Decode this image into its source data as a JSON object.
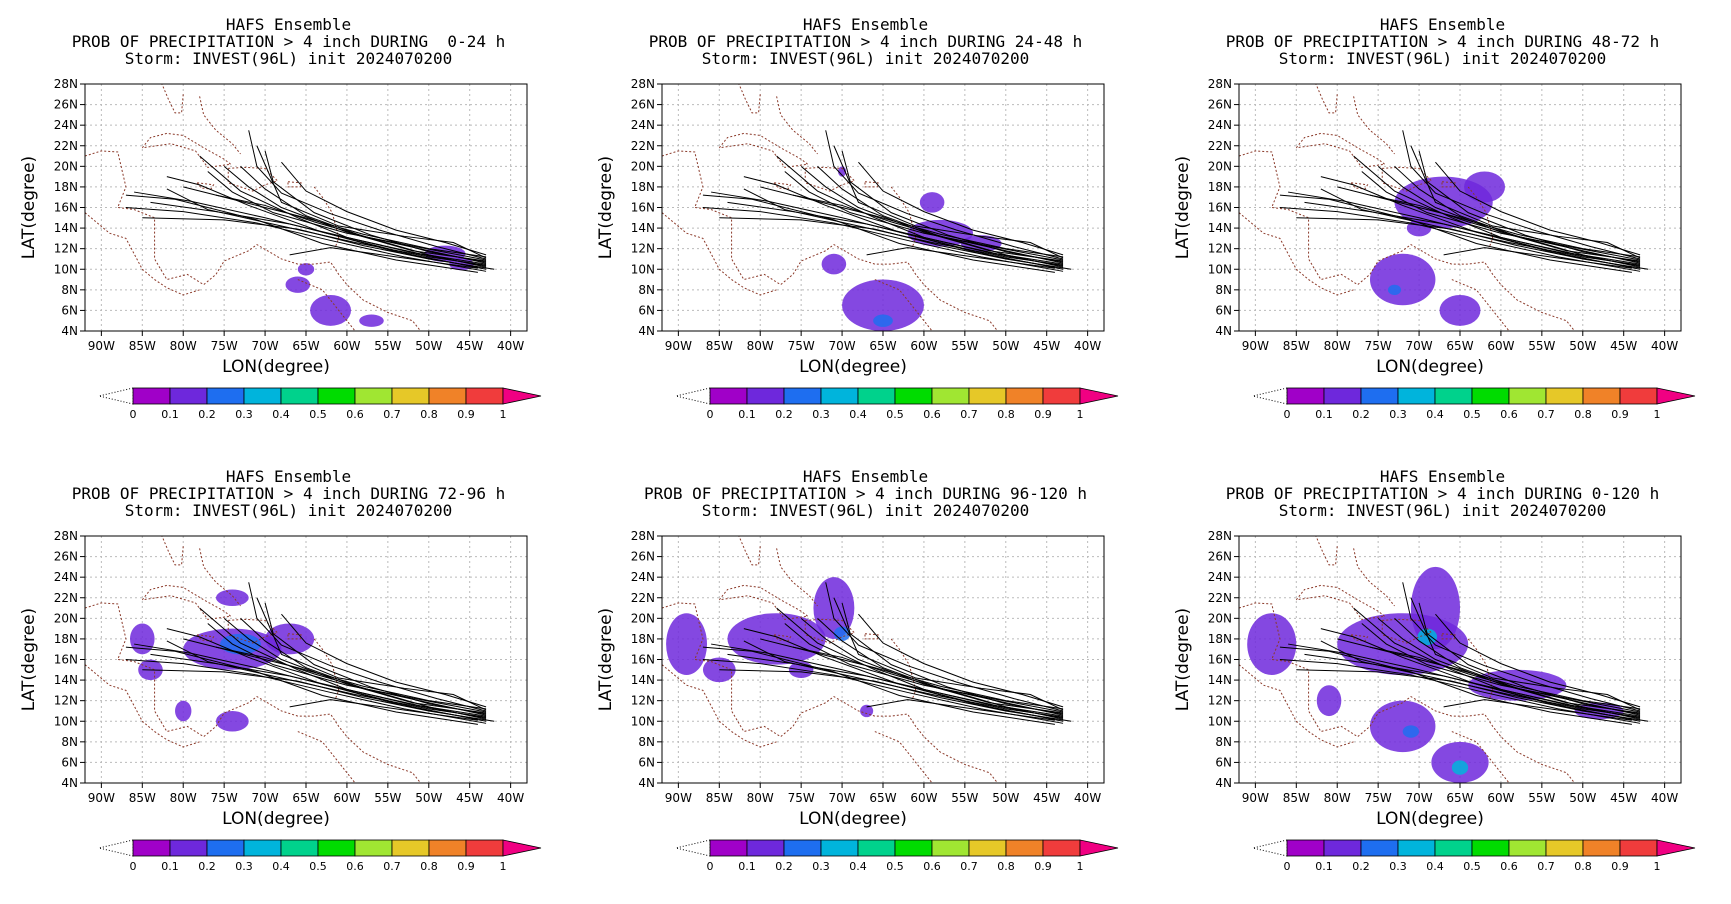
{
  "figure": {
    "model_title": "HAFS Ensemble",
    "storm_line": "Storm: INVEST(96L) init 2024070200",
    "xlabel": "LON(degree)",
    "ylabel": "LAT(degree)"
  },
  "chart_data": [
    {
      "type": "heatmap",
      "title": "HAFS Ensemble",
      "subtitle": "PROB OF PRECIPITATION > 4 inch DURING  0-24 h",
      "storm": "Storm: INVEST(96L) init 2024070200",
      "xlabel": "LON(degree)",
      "ylabel": "LAT(degree)",
      "xlim": [
        -92,
        -38
      ],
      "ylim": [
        4,
        28
      ],
      "precip_cells": [
        {
          "lon": -48,
          "lat": 11.5,
          "rx": 2.5,
          "ry": 0.8,
          "p": 0.1
        },
        {
          "lon": -46,
          "lat": 10.5,
          "rx": 1.5,
          "ry": 0.6,
          "p": 0.1
        },
        {
          "lon": -62,
          "lat": 6,
          "rx": 2.5,
          "ry": 1.5,
          "p": 0.1
        },
        {
          "lon": -66,
          "lat": 8.5,
          "rx": 1.5,
          "ry": 0.8,
          "p": 0.1
        },
        {
          "lon": -65,
          "lat": 10,
          "rx": 1,
          "ry": 0.6,
          "p": 0.1
        },
        {
          "lon": -57,
          "lat": 5,
          "rx": 1.5,
          "ry": 0.6,
          "p": 0.1
        }
      ]
    },
    {
      "type": "heatmap",
      "title": "HAFS Ensemble",
      "subtitle": "PROB OF PRECIPITATION > 4 inch DURING 24-48 h",
      "storm": "Storm: INVEST(96L) init 2024070200",
      "xlabel": "LON(degree)",
      "ylabel": "LAT(degree)",
      "xlim": [
        -92,
        -38
      ],
      "ylim": [
        4,
        28
      ],
      "precip_cells": [
        {
          "lon": -58,
          "lat": 13.5,
          "rx": 4,
          "ry": 1.3,
          "p": 0.1
        },
        {
          "lon": -53,
          "lat": 12.5,
          "rx": 2.5,
          "ry": 0.8,
          "p": 0.1
        },
        {
          "lon": -59,
          "lat": 16.5,
          "rx": 1.5,
          "ry": 1,
          "p": 0.1
        },
        {
          "lon": -65,
          "lat": 6.5,
          "rx": 5,
          "ry": 2.5,
          "p": 0.1
        },
        {
          "lon": -65,
          "lat": 5,
          "rx": 1.2,
          "ry": 0.6,
          "p": 0.2
        },
        {
          "lon": -71,
          "lat": 10.5,
          "rx": 1.5,
          "ry": 1,
          "p": 0.1
        },
        {
          "lon": -70,
          "lat": 19.5,
          "rx": 0.5,
          "ry": 0.5,
          "p": 0.1
        }
      ]
    },
    {
      "type": "heatmap",
      "title": "HAFS Ensemble",
      "subtitle": "PROB OF PRECIPITATION > 4 inch DURING 48-72 h",
      "storm": "Storm: INVEST(96L) init 2024070200",
      "xlabel": "LON(degree)",
      "ylabel": "LAT(degree)",
      "xlim": [
        -92,
        -38
      ],
      "ylim": [
        4,
        28
      ],
      "precip_cells": [
        {
          "lon": -67,
          "lat": 16.5,
          "rx": 6,
          "ry": 2.5,
          "p": 0.1
        },
        {
          "lon": -62,
          "lat": 18,
          "rx": 2.5,
          "ry": 1.5,
          "p": 0.1
        },
        {
          "lon": -72,
          "lat": 9,
          "rx": 4,
          "ry": 2.5,
          "p": 0.1
        },
        {
          "lon": -65,
          "lat": 6,
          "rx": 2.5,
          "ry": 1.5,
          "p": 0.1
        },
        {
          "lon": -73,
          "lat": 8,
          "rx": 0.8,
          "ry": 0.5,
          "p": 0.2
        },
        {
          "lon": -70,
          "lat": 14,
          "rx": 1.5,
          "ry": 0.8,
          "p": 0.1
        }
      ]
    },
    {
      "type": "heatmap",
      "title": "HAFS Ensemble",
      "subtitle": "PROB OF PRECIPITATION > 4 inch DURING 72-96 h",
      "storm": "Storm: INVEST(96L) init 2024070200",
      "xlabel": "LON(degree)",
      "ylabel": "LAT(degree)",
      "xlim": [
        -92,
        -38
      ],
      "ylim": [
        4,
        28
      ],
      "precip_cells": [
        {
          "lon": -74,
          "lat": 17,
          "rx": 6,
          "ry": 2,
          "p": 0.1
        },
        {
          "lon": -73,
          "lat": 17.5,
          "rx": 2.5,
          "ry": 1,
          "p": 0.2
        },
        {
          "lon": -67,
          "lat": 18,
          "rx": 3,
          "ry": 1.5,
          "p": 0.1
        },
        {
          "lon": -74,
          "lat": 22,
          "rx": 2,
          "ry": 0.8,
          "p": 0.1
        },
        {
          "lon": -85,
          "lat": 18,
          "rx": 1.5,
          "ry": 1.5,
          "p": 0.1
        },
        {
          "lon": -84,
          "lat": 15,
          "rx": 1.5,
          "ry": 1,
          "p": 0.1
        },
        {
          "lon": -80,
          "lat": 11,
          "rx": 1,
          "ry": 1,
          "p": 0.1
        },
        {
          "lon": -74,
          "lat": 10,
          "rx": 2,
          "ry": 1,
          "p": 0.1
        }
      ]
    },
    {
      "type": "heatmap",
      "title": "HAFS Ensemble",
      "subtitle": "PROB OF PRECIPITATION > 4 inch DURING 96-120 h",
      "storm": "Storm: INVEST(96L) init 2024070200",
      "xlabel": "LON(degree)",
      "ylabel": "LAT(degree)",
      "xlim": [
        -92,
        -38
      ],
      "ylim": [
        4,
        28
      ],
      "precip_cells": [
        {
          "lon": -78,
          "lat": 18,
          "rx": 6,
          "ry": 2.5,
          "p": 0.1
        },
        {
          "lon": -71,
          "lat": 21,
          "rx": 2.5,
          "ry": 3,
          "p": 0.1
        },
        {
          "lon": -70,
          "lat": 18.5,
          "rx": 1,
          "ry": 0.7,
          "p": 0.2
        },
        {
          "lon": -89,
          "lat": 17.5,
          "rx": 2.5,
          "ry": 3,
          "p": 0.1
        },
        {
          "lon": -85,
          "lat": 15,
          "rx": 2,
          "ry": 1.2,
          "p": 0.1
        },
        {
          "lon": -75,
          "lat": 15,
          "rx": 1.5,
          "ry": 0.8,
          "p": 0.1
        },
        {
          "lon": -67,
          "lat": 11,
          "rx": 0.8,
          "ry": 0.6,
          "p": 0.1
        }
      ]
    },
    {
      "type": "heatmap",
      "title": "HAFS Ensemble",
      "subtitle": "PROB OF PRECIPITATION > 4 inch DURING 0-120 h",
      "storm": "Storm: INVEST(96L) init 2024070200",
      "xlabel": "LON(degree)",
      "ylabel": "LAT(degree)",
      "xlim": [
        -92,
        -38
      ],
      "ylim": [
        4,
        28
      ],
      "precip_cells": [
        {
          "lon": -72,
          "lat": 17.5,
          "rx": 8,
          "ry": 3,
          "p": 0.1
        },
        {
          "lon": -68,
          "lat": 21,
          "rx": 3,
          "ry": 4,
          "p": 0.1
        },
        {
          "lon": -69,
          "lat": 18.2,
          "rx": 1.2,
          "ry": 0.8,
          "p": 0.3
        },
        {
          "lon": -58,
          "lat": 13.5,
          "rx": 6,
          "ry": 1.5,
          "p": 0.1
        },
        {
          "lon": -88,
          "lat": 17.5,
          "rx": 3,
          "ry": 3,
          "p": 0.1
        },
        {
          "lon": -72,
          "lat": 9.5,
          "rx": 4,
          "ry": 2.5,
          "p": 0.1
        },
        {
          "lon": -65,
          "lat": 6,
          "rx": 3.5,
          "ry": 2,
          "p": 0.1
        },
        {
          "lon": -65,
          "lat": 5.5,
          "rx": 1,
          "ry": 0.7,
          "p": 0.3
        },
        {
          "lon": -71,
          "lat": 9,
          "rx": 1,
          "ry": 0.6,
          "p": 0.2
        },
        {
          "lon": -48,
          "lat": 11,
          "rx": 3,
          "ry": 0.8,
          "p": 0.1
        },
        {
          "lon": -81,
          "lat": 12,
          "rx": 1.5,
          "ry": 1.5,
          "p": 0.1
        }
      ]
    }
  ],
  "tracks": [
    [
      [
        -43,
        11.2
      ],
      [
        -50,
        12
      ],
      [
        -58,
        13.4
      ],
      [
        -66,
        15.2
      ],
      [
        -74,
        16.8
      ],
      [
        -80,
        18
      ]
    ],
    [
      [
        -43,
        10.8
      ],
      [
        -52,
        11.8
      ],
      [
        -60,
        13.6
      ],
      [
        -68,
        16
      ],
      [
        -72,
        18
      ],
      [
        -75,
        20
      ]
    ],
    [
      [
        -43,
        10.5
      ],
      [
        -51,
        11.5
      ],
      [
        -59,
        12.9
      ],
      [
        -67,
        14.4
      ],
      [
        -76,
        15.6
      ],
      [
        -84,
        16.5
      ]
    ],
    [
      [
        -43,
        10.2
      ],
      [
        -50,
        11.4
      ],
      [
        -57,
        13
      ],
      [
        -64,
        14.6
      ],
      [
        -70,
        16.2
      ],
      [
        -76,
        17.2
      ]
    ],
    [
      [
        -43,
        11
      ],
      [
        -49,
        12.2
      ],
      [
        -56,
        13.8
      ],
      [
        -62,
        15.4
      ],
      [
        -68,
        17.4
      ],
      [
        -71,
        20
      ],
      [
        -72,
        23.5
      ]
    ],
    [
      [
        -43,
        10
      ],
      [
        -52,
        11.4
      ],
      [
        -61,
        13.2
      ],
      [
        -70,
        15
      ],
      [
        -79,
        16.6
      ],
      [
        -86,
        17.5
      ]
    ],
    [
      [
        -43,
        10.6
      ],
      [
        -50,
        11.8
      ],
      [
        -58,
        13.2
      ],
      [
        -65,
        15.2
      ],
      [
        -70,
        17.8
      ],
      [
        -73,
        20
      ]
    ],
    [
      [
        -43,
        9.8
      ],
      [
        -53,
        11.2
      ],
      [
        -62,
        12.8
      ],
      [
        -71,
        14.5
      ],
      [
        -80,
        15.6
      ],
      [
        -87,
        16
      ]
    ],
    [
      [
        -43,
        10.4
      ],
      [
        -50,
        11.2
      ],
      [
        -59,
        12.6
      ],
      [
        -68,
        14.2
      ],
      [
        -77,
        15.8
      ],
      [
        -82,
        17.8
      ]
    ],
    [
      [
        -43,
        11.4
      ],
      [
        -48,
        12.6
      ],
      [
        -54,
        13.8
      ],
      [
        -60,
        15.6
      ],
      [
        -65,
        17.6
      ],
      [
        -68,
        20.4
      ]
    ],
    [
      [
        -44,
        10.2
      ],
      [
        -53,
        11.5
      ],
      [
        -63,
        13.6
      ],
      [
        -72,
        16.2
      ],
      [
        -78,
        18.2
      ],
      [
        -82,
        19
      ]
    ],
    [
      [
        -43,
        10.9
      ],
      [
        -51,
        12.1
      ],
      [
        -60,
        13.5
      ],
      [
        -69,
        15.5
      ],
      [
        -74,
        17.5
      ],
      [
        -77,
        19.5
      ]
    ],
    [
      [
        -42,
        10
      ],
      [
        -50,
        11
      ],
      [
        -58,
        12.3
      ],
      [
        -66,
        13.9
      ],
      [
        -75,
        14.8
      ],
      [
        -85,
        15
      ]
    ],
    [
      [
        -43,
        11.1
      ],
      [
        -47,
        12.6
      ],
      [
        -53,
        13.2
      ],
      [
        -61,
        14.2
      ],
      [
        -68,
        16.5
      ],
      [
        -71,
        22
      ]
    ],
    [
      [
        -44,
        9.7
      ],
      [
        -54,
        10.9
      ],
      [
        -63,
        12.5
      ],
      [
        -71,
        14.8
      ],
      [
        -81,
        16.8
      ],
      [
        -87,
        17.2
      ]
    ],
    [
      [
        -43,
        10.3
      ],
      [
        -52,
        11.6
      ],
      [
        -60,
        13.1
      ],
      [
        -66,
        15
      ],
      [
        -73,
        17.6
      ],
      [
        -78,
        21
      ]
    ],
    [
      [
        -43,
        10.7
      ],
      [
        -50,
        11.7
      ],
      [
        -57,
        13.3
      ],
      [
        -64,
        15.5
      ],
      [
        -69,
        18.5
      ],
      [
        -70,
        21.5
      ]
    ],
    [
      [
        -44,
        10.1
      ],
      [
        -54,
        11.2
      ],
      [
        -62,
        12.1
      ],
      [
        -67,
        11.4
      ]
    ]
  ],
  "colorbar": {
    "ticks": [
      "0",
      "0.1",
      "0.2",
      "0.3",
      "0.4",
      "0.5",
      "0.6",
      "0.7",
      "0.8",
      "0.9",
      "1"
    ],
    "colors": [
      "#a000c8",
      "#6e28dc",
      "#1e6ef0",
      "#00b4dc",
      "#00d28c",
      "#00dc00",
      "#a0e632",
      "#e6c828",
      "#f08228",
      "#f03c3c",
      "#f00082"
    ]
  },
  "axis_ticks": {
    "lon": [
      "90W",
      "85W",
      "80W",
      "75W",
      "70W",
      "65W",
      "60W",
      "55W",
      "50W",
      "45W",
      "40W"
    ],
    "lat": [
      "4N",
      "6N",
      "8N",
      "10N",
      "12N",
      "14N",
      "16N",
      "18N",
      "20N",
      "22N",
      "24N",
      "26N",
      "28N"
    ]
  }
}
